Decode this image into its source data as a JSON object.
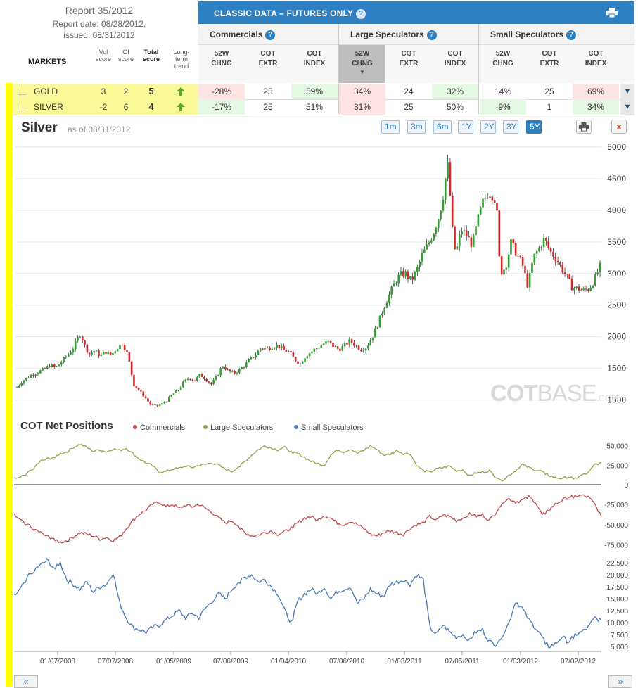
{
  "report": {
    "title": "Report 35/2012",
    "report_date": "Report date: 08/28/2012,",
    "issued": "issued: 08/31/2012"
  },
  "table_headers": {
    "markets": "MARKETS",
    "vol_score": [
      "Vol",
      "score"
    ],
    "oi_score": [
      "OI",
      "score"
    ],
    "total_score": [
      "Total",
      "score"
    ],
    "long_term": [
      "Long-",
      "term",
      "trend"
    ]
  },
  "banner": {
    "title": "CLASSIC DATA – FUTURES ONLY",
    "help": "?"
  },
  "groups": [
    {
      "label": "Commercials"
    },
    {
      "label": "Large Speculators"
    },
    {
      "label": "Small Speculators"
    }
  ],
  "subheads": [
    [
      "52W",
      "CHNG"
    ],
    [
      "COT",
      "EXTR"
    ],
    [
      "COT",
      "INDEX"
    ],
    [
      "52W",
      "CHNG"
    ],
    [
      "COT",
      "EXTR"
    ],
    [
      "COT",
      "INDEX"
    ],
    [
      "52W",
      "CHNG"
    ],
    [
      "COT",
      "EXTR"
    ],
    [
      "COT",
      "INDEX"
    ]
  ],
  "rows": [
    {
      "market": "GOLD",
      "vol": "3",
      "oi": "2",
      "total": "5",
      "trend": "up",
      "cells": [
        {
          "v": "-28%",
          "c": "red"
        },
        {
          "v": "25",
          "c": ""
        },
        {
          "v": "59%",
          "c": "green"
        },
        {
          "v": "34%",
          "c": "red"
        },
        {
          "v": "24",
          "c": ""
        },
        {
          "v": "32%",
          "c": "green"
        },
        {
          "v": "14%",
          "c": ""
        },
        {
          "v": "25",
          "c": ""
        },
        {
          "v": "69%",
          "c": "red"
        }
      ]
    },
    {
      "market": "SILVER",
      "vol": "-2",
      "oi": "6",
      "total": "4",
      "trend": "up",
      "cells": [
        {
          "v": "-17%",
          "c": "green"
        },
        {
          "v": "25",
          "c": ""
        },
        {
          "v": "51%",
          "c": ""
        },
        {
          "v": "31%",
          "c": "red"
        },
        {
          "v": "25",
          "c": ""
        },
        {
          "v": "50%",
          "c": ""
        },
        {
          "v": "-9%",
          "c": "green"
        },
        {
          "v": "1",
          "c": ""
        },
        {
          "v": "34%",
          "c": "green"
        }
      ]
    }
  ],
  "chart_header": {
    "title": "Silver",
    "as_of": "as of 08/31/2012",
    "ranges": [
      "1m",
      "3m",
      "6m",
      "1Y",
      "2Y",
      "3Y",
      "5Y"
    ],
    "active_range": "5Y",
    "close": "x"
  },
  "watermark": {
    "bold": "COT",
    "thin": "BASE",
    "small": ".COM"
  },
  "netpos": {
    "title": "COT Net Positions",
    "legend": [
      {
        "label": "Commercials",
        "color": "#b94a48"
      },
      {
        "label": "Large Speculators",
        "color": "#8aa64a"
      },
      {
        "label": "Small Speculators",
        "color": "#4a78b5"
      }
    ]
  },
  "nav": {
    "prev": "«",
    "next": "»"
  },
  "colors": {
    "up_candle": "#2ea12e",
    "down_candle": "#d62828",
    "commercials": "#b94a48",
    "large_spec": "#8aa64a",
    "small_spec": "#4a78b5",
    "banner": "#2f7fc3"
  },
  "chart_data": [
    {
      "type": "candlestick",
      "title": "Silver",
      "y_ticks": [
        1000,
        1500,
        2000,
        2500,
        3000,
        3500,
        4000,
        4500,
        5000
      ],
      "ylim": [
        850,
        5000
      ],
      "x_ticks": [
        "01/07/2008",
        "07/07/2008",
        "01/05/2009",
        "07/06/2009",
        "01/04/2010",
        "07/06/2010",
        "01/03/2011",
        "07/05/2011",
        "01/03/2012",
        "07/02/2012"
      ],
      "grid": true,
      "close_path": [
        [
          0,
          1200
        ],
        [
          2,
          1300
        ],
        [
          5,
          1390
        ],
        [
          8,
          1450
        ],
        [
          10,
          1490
        ],
        [
          12,
          1550
        ],
        [
          14,
          1510
        ],
        [
          16,
          1600
        ],
        [
          18,
          1700
        ],
        [
          20,
          1800
        ],
        [
          22,
          1980
        ],
        [
          23,
          2060
        ],
        [
          24,
          1900
        ],
        [
          26,
          1720
        ],
        [
          28,
          1780
        ],
        [
          30,
          1700
        ],
        [
          32,
          1760
        ],
        [
          34,
          1710
        ],
        [
          36,
          1820
        ],
        [
          38,
          1900
        ],
        [
          40,
          1700
        ],
        [
          41,
          1480
        ],
        [
          42,
          1250
        ],
        [
          44,
          1150
        ],
        [
          46,
          1050
        ],
        [
          48,
          930
        ],
        [
          50,
          900
        ],
        [
          52,
          930
        ],
        [
          54,
          990
        ],
        [
          56,
          1090
        ],
        [
          58,
          1150
        ],
        [
          60,
          1280
        ],
        [
          62,
          1350
        ],
        [
          64,
          1310
        ],
        [
          66,
          1400
        ],
        [
          68,
          1330
        ],
        [
          70,
          1250
        ],
        [
          72,
          1370
        ],
        [
          74,
          1550
        ],
        [
          76,
          1460
        ],
        [
          78,
          1420
        ],
        [
          80,
          1470
        ],
        [
          82,
          1550
        ],
        [
          84,
          1640
        ],
        [
          86,
          1720
        ],
        [
          88,
          1830
        ],
        [
          90,
          1810
        ],
        [
          92,
          1850
        ],
        [
          94,
          1860
        ],
        [
          96,
          1790
        ],
        [
          98,
          1760
        ],
        [
          100,
          1640
        ],
        [
          102,
          1570
        ],
        [
          104,
          1700
        ],
        [
          106,
          1760
        ],
        [
          108,
          1820
        ],
        [
          110,
          1880
        ],
        [
          112,
          1920
        ],
        [
          114,
          1850
        ],
        [
          116,
          1800
        ],
        [
          118,
          1860
        ],
        [
          120,
          1940
        ],
        [
          122,
          1860
        ],
        [
          124,
          1800
        ],
        [
          126,
          1840
        ],
        [
          128,
          2000
        ],
        [
          130,
          2200
        ],
        [
          132,
          2450
        ],
        [
          134,
          2650
        ],
        [
          136,
          2850
        ],
        [
          138,
          2980
        ],
        [
          140,
          3000
        ],
        [
          142,
          2880
        ],
        [
          144,
          3050
        ],
        [
          146,
          3300
        ],
        [
          148,
          3450
        ],
        [
          150,
          3650
        ],
        [
          152,
          3900
        ],
        [
          154,
          4350
        ],
        [
          155,
          4800
        ],
        [
          156,
          4250
        ],
        [
          157,
          3600
        ],
        [
          158,
          3300
        ],
        [
          160,
          3700
        ],
        [
          162,
          3600
        ],
        [
          164,
          3450
        ],
        [
          166,
          3850
        ],
        [
          168,
          4150
        ],
        [
          170,
          4300
        ],
        [
          172,
          4200
        ],
        [
          173,
          3900
        ],
        [
          174,
          3000
        ],
        [
          176,
          3100
        ],
        [
          178,
          3500
        ],
        [
          180,
          3300
        ],
        [
          182,
          3150
        ],
        [
          184,
          2800
        ],
        [
          186,
          3250
        ],
        [
          188,
          3400
        ],
        [
          190,
          3550
        ],
        [
          192,
          3350
        ],
        [
          194,
          3250
        ],
        [
          196,
          3100
        ],
        [
          198,
          2950
        ],
        [
          200,
          2780
        ],
        [
          202,
          2760
        ],
        [
          204,
          2730
        ],
        [
          206,
          2760
        ],
        [
          208,
          2900
        ],
        [
          210,
          3110
        ]
      ]
    },
    {
      "type": "line",
      "title": "COT Net Positions",
      "x_ticks": [
        "01/07/2008",
        "07/07/2008",
        "01/05/2009",
        "07/06/2009",
        "01/04/2010",
        "07/06/2010",
        "01/03/2011",
        "07/05/2011",
        "01/03/2012",
        "07/02/2012"
      ],
      "series": [
        {
          "name": "Large Speculators",
          "y_ticks": [
            0,
            25000,
            50000
          ],
          "ylim": [
            0,
            57000
          ],
          "values": [
            8000,
            9000,
            15000,
            22000,
            30000,
            33000,
            35000,
            40000,
            42000,
            48000,
            52000,
            48000,
            43000,
            45000,
            42000,
            46000,
            44000,
            47000,
            40000,
            33000,
            28000,
            24000,
            16000,
            17000,
            20000,
            21000,
            24000,
            22000,
            25000,
            26000,
            28000,
            25000,
            20000,
            17000,
            23000,
            30000,
            38000,
            45000,
            50000,
            47000,
            45000,
            48000,
            42000,
            40000,
            35000,
            30000,
            27000,
            25000,
            38000,
            45000,
            42000,
            46000,
            40000,
            44000,
            50000,
            45000,
            38000,
            39000,
            44000,
            40000,
            40000,
            25000,
            18000,
            16000,
            20000,
            22000,
            24000,
            18000,
            19000,
            12000,
            15000,
            16000,
            18000,
            10000,
            6000,
            12000,
            18000,
            26000,
            22000,
            19000,
            17000,
            12000,
            9000,
            8000,
            10000,
            8000,
            12000,
            15000,
            26000,
            28000
          ]
        },
        {
          "name": "Commercials",
          "y_ticks": [
            -25000,
            -50000,
            -75000
          ],
          "ylim": [
            -85000,
            -5000
          ],
          "values": [
            -38000,
            -45000,
            -50000,
            -55000,
            -60000,
            -65000,
            -67000,
            -72000,
            -70000,
            -65000,
            -60000,
            -62000,
            -64000,
            -68000,
            -66000,
            -70000,
            -65000,
            -55000,
            -45000,
            -37000,
            -32000,
            -25000,
            -22000,
            -28000,
            -25000,
            -30000,
            -26000,
            -28000,
            -25000,
            -30000,
            -35000,
            -42000,
            -48000,
            -45000,
            -52000,
            -60000,
            -64000,
            -63000,
            -60000,
            -58000,
            -62000,
            -59000,
            -54000,
            -48000,
            -42000,
            -40000,
            -45000,
            -38000,
            -42000,
            -48000,
            -50000,
            -46000,
            -50000,
            -55000,
            -62000,
            -64000,
            -60000,
            -58000,
            -60000,
            -62000,
            -55000,
            -50000,
            -48000,
            -40000,
            -45000,
            -38000,
            -40000,
            -45000,
            -42000,
            -36000,
            -40000,
            -38000,
            -45000,
            -35000,
            -22000,
            -18000,
            -22000,
            -20000,
            -16000,
            -22000,
            -38000,
            -32000,
            -25000,
            -20000,
            -16000,
            -15000,
            -14000,
            -16000,
            -25000,
            -40000
          ]
        },
        {
          "name": "Small Speculators",
          "y_ticks": [
            5000,
            7500,
            10000,
            12500,
            15000,
            17500,
            20000,
            22500
          ],
          "ylim": [
            4000,
            24000
          ],
          "values": [
            15500,
            17000,
            19500,
            21000,
            22000,
            23000,
            21500,
            22500,
            19000,
            18000,
            17000,
            18500,
            16500,
            17500,
            18000,
            20500,
            14000,
            11000,
            9000,
            8500,
            8000,
            9000,
            9500,
            10500,
            11500,
            12500,
            11000,
            12000,
            11000,
            13000,
            14500,
            16000,
            15000,
            17000,
            18500,
            19500,
            20000,
            18500,
            19000,
            17500,
            16000,
            12500,
            10000,
            14500,
            16000,
            17000,
            16000,
            17500,
            15000,
            16500,
            17000,
            17500,
            14000,
            15000,
            17000,
            16000,
            15500,
            18000,
            18500,
            19000,
            18000,
            20000,
            19000,
            9000,
            7500,
            9500,
            8000,
            7000,
            7500,
            6500,
            8000,
            8500,
            6000,
            5500,
            7500,
            10000,
            14500,
            13000,
            10500,
            9000,
            7000,
            5000,
            5500,
            7000,
            6000,
            7500,
            8000,
            9000,
            11000,
            10500
          ]
        }
      ]
    }
  ]
}
